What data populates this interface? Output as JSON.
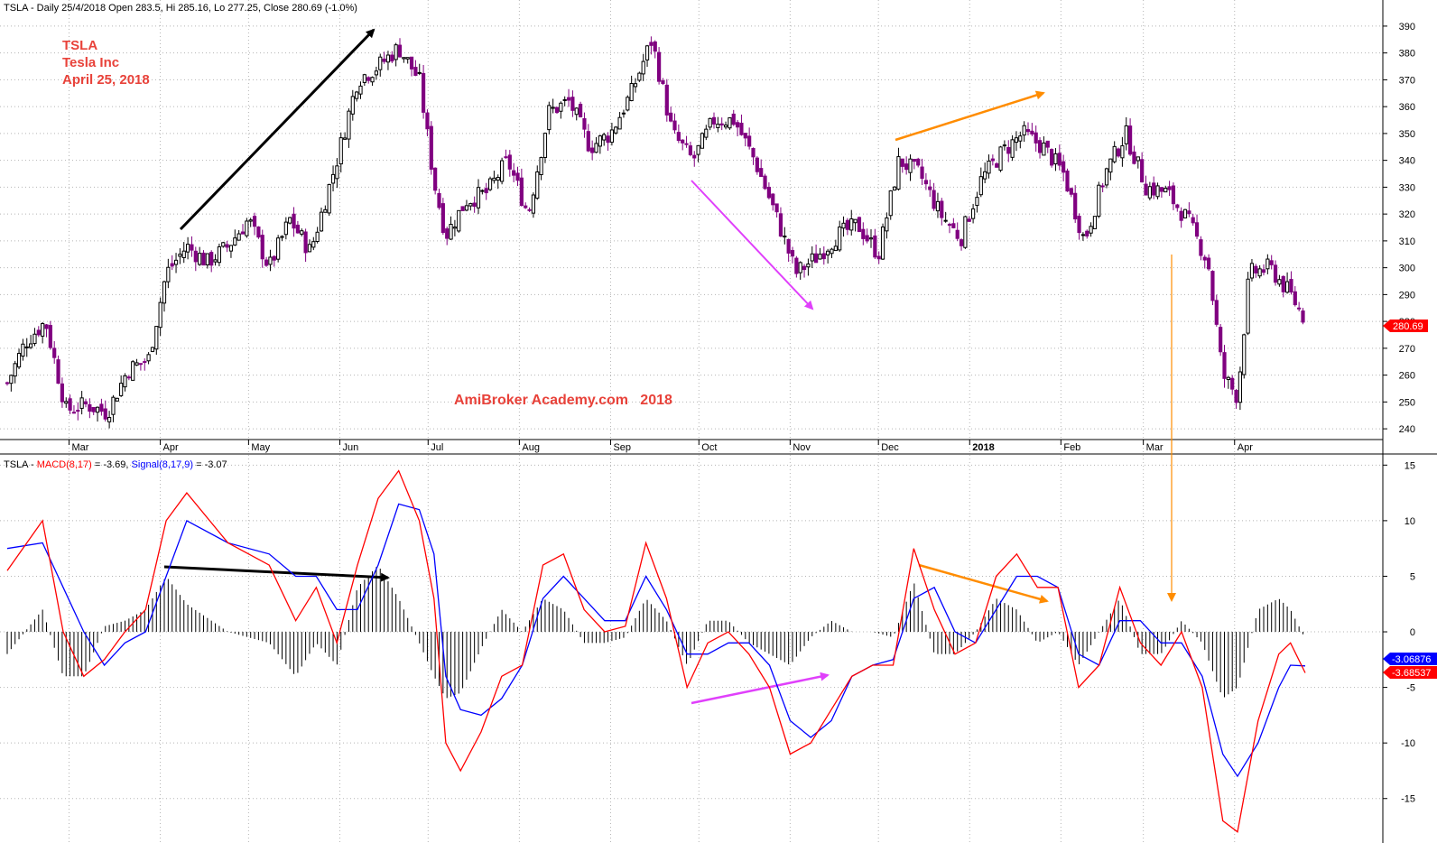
{
  "header": {
    "price_line": "TSLA - Daily 25/4/2018 Open 283.5, Hi 285.16, Lo 277.25, Close 280.69 (-1.0%)",
    "macd_prefix": "TSLA - ",
    "macd_name": "MACD(8,17)",
    "macd_value": " = -3.69, ",
    "signal_name": "Signal(8,17,9)",
    "signal_value": " = -3.07"
  },
  "annotation": {
    "title_line1": "TSLA",
    "title_line2": "Tesla Inc",
    "title_line3": "April 25, 2018",
    "watermark": "AmiBroker Academy.com   2018"
  },
  "price_tag": "280.69",
  "macd_tag": "-3.68537",
  "signal_tag": "-3.06876",
  "colors": {
    "up_candle": "#000000",
    "down_candle": "#800080",
    "macd": "#ff0000",
    "signal": "#0000ff",
    "histogram": "#000000",
    "annotation_text": "#e8423a",
    "arrow_black": "#000000",
    "arrow_purple": "#e040fb",
    "arrow_orange": "#ff8c00"
  },
  "chart_data": [
    {
      "type": "candlestick",
      "title": "TSLA - Daily 25/4/2018",
      "x_tick_labels": [
        "Mar",
        "Apr",
        "May",
        "Jun",
        "Jul",
        "Aug",
        "Sep",
        "Oct",
        "Nov",
        "Dec",
        "2018",
        "Feb",
        "Mar",
        "Apr"
      ],
      "y_tick_labels": [
        "240",
        "250",
        "260",
        "270",
        "280",
        "290",
        "300",
        "310",
        "320",
        "330",
        "340",
        "350",
        "360",
        "370",
        "380",
        "390"
      ],
      "ylim": [
        236,
        393
      ],
      "grid": true,
      "close_series": [
        [
          "2017-02-08",
          257
        ],
        [
          "2017-02-14",
          272
        ],
        [
          "2017-02-21",
          280
        ],
        [
          "2017-02-28",
          247
        ],
        [
          "2017-03-07",
          249
        ],
        [
          "2017-03-14",
          246
        ],
        [
          "2017-03-21",
          262
        ],
        [
          "2017-03-28",
          266
        ],
        [
          "2017-04-03",
          298
        ],
        [
          "2017-04-10",
          308
        ],
        [
          "2017-04-17",
          302
        ],
        [
          "2017-04-24",
          308
        ],
        [
          "2017-05-01",
          318
        ],
        [
          "2017-05-08",
          300
        ],
        [
          "2017-05-15",
          318
        ],
        [
          "2017-05-22",
          306
        ],
        [
          "2017-05-31",
          340
        ],
        [
          "2017-06-07",
          370
        ],
        [
          "2017-06-14",
          375
        ],
        [
          "2017-06-21",
          382
        ],
        [
          "2017-06-28",
          370
        ],
        [
          "2017-07-03",
          332
        ],
        [
          "2017-07-07",
          312
        ],
        [
          "2017-07-14",
          325
        ],
        [
          "2017-07-21",
          328
        ],
        [
          "2017-07-28",
          340
        ],
        [
          "2017-08-04",
          320
        ],
        [
          "2017-08-11",
          358
        ],
        [
          "2017-08-18",
          362
        ],
        [
          "2017-08-25",
          345
        ],
        [
          "2017-09-01",
          350
        ],
        [
          "2017-09-08",
          365
        ],
        [
          "2017-09-15",
          385
        ],
        [
          "2017-09-22",
          350
        ],
        [
          "2017-09-29",
          340
        ],
        [
          "2017-10-06",
          355
        ],
        [
          "2017-10-13",
          355
        ],
        [
          "2017-10-20",
          340
        ],
        [
          "2017-10-27",
          320
        ],
        [
          "2017-11-03",
          298
        ],
        [
          "2017-11-10",
          304
        ],
        [
          "2017-11-17",
          312
        ],
        [
          "2017-11-24",
          316
        ],
        [
          "2017-12-01",
          305
        ],
        [
          "2017-12-08",
          340
        ],
        [
          "2017-12-15",
          335
        ],
        [
          "2017-12-22",
          320
        ],
        [
          "2017-12-29",
          311
        ],
        [
          "2018-01-05",
          333
        ],
        [
          "2018-01-12",
          343
        ],
        [
          "2018-01-19",
          350
        ],
        [
          "2018-01-26",
          345
        ],
        [
          "2018-02-02",
          335
        ],
        [
          "2018-02-09",
          310
        ],
        [
          "2018-02-16",
          335
        ],
        [
          "2018-02-23",
          350
        ],
        [
          "2018-03-02",
          330
        ],
        [
          "2018-03-09",
          328
        ],
        [
          "2018-03-16",
          318
        ],
        [
          "2018-03-23",
          302
        ],
        [
          "2018-03-28",
          260
        ],
        [
          "2018-04-02",
          252
        ],
        [
          "2018-04-06",
          298
        ],
        [
          "2018-04-13",
          300
        ],
        [
          "2018-04-20",
          290
        ],
        [
          "2018-04-25",
          280.69
        ]
      ]
    },
    {
      "type": "line",
      "title": "TSLA - MACD(8,17) = -3.69, Signal(8,17,9) = -3.07",
      "y_tick_labels": [
        "-15",
        "-10",
        "-5",
        "0",
        "5",
        "10",
        "15"
      ],
      "ylim": [
        -19,
        16
      ],
      "series": [
        {
          "name": "MACD(8,17)",
          "values": [
            [
              "2017-02-08",
              5.5
            ],
            [
              "2017-02-20",
              10
            ],
            [
              "2017-02-27",
              0
            ],
            [
              "2017-03-06",
              -4
            ],
            [
              "2017-03-13",
              -2.5
            ],
            [
              "2017-03-20",
              0
            ],
            [
              "2017-03-27",
              2
            ],
            [
              "2017-04-03",
              10
            ],
            [
              "2017-04-10",
              12.5
            ],
            [
              "2017-04-24",
              8
            ],
            [
              "2017-05-08",
              6
            ],
            [
              "2017-05-17",
              1
            ],
            [
              "2017-05-24",
              4
            ],
            [
              "2017-05-31",
              -1
            ],
            [
              "2017-06-07",
              6
            ],
            [
              "2017-06-14",
              12
            ],
            [
              "2017-06-21",
              14.5
            ],
            [
              "2017-06-28",
              10
            ],
            [
              "2017-07-03",
              3
            ],
            [
              "2017-07-07",
              -10
            ],
            [
              "2017-07-12",
              -12.5
            ],
            [
              "2017-07-19",
              -9
            ],
            [
              "2017-07-26",
              -4
            ],
            [
              "2017-08-02",
              -3
            ],
            [
              "2017-08-09",
              6
            ],
            [
              "2017-08-16",
              7
            ],
            [
              "2017-08-23",
              2
            ],
            [
              "2017-08-30",
              0
            ],
            [
              "2017-09-06",
              0.5
            ],
            [
              "2017-09-13",
              8
            ],
            [
              "2017-09-20",
              3
            ],
            [
              "2017-09-27",
              -5
            ],
            [
              "2017-10-04",
              -1
            ],
            [
              "2017-10-11",
              0
            ],
            [
              "2017-10-18",
              -2
            ],
            [
              "2017-10-25",
              -5
            ],
            [
              "2017-11-01",
              -11
            ],
            [
              "2017-11-08",
              -10
            ],
            [
              "2017-11-15",
              -7
            ],
            [
              "2017-11-22",
              -4
            ],
            [
              "2017-11-29",
              -3
            ],
            [
              "2017-12-06",
              -3
            ],
            [
              "2017-12-13",
              7.5
            ],
            [
              "2017-12-20",
              2
            ],
            [
              "2017-12-27",
              -2
            ],
            [
              "2018-01-03",
              -1
            ],
            [
              "2018-01-10",
              5
            ],
            [
              "2018-01-17",
              7
            ],
            [
              "2018-01-24",
              4
            ],
            [
              "2018-01-31",
              4
            ],
            [
              "2018-02-07",
              -5
            ],
            [
              "2018-02-14",
              -3
            ],
            [
              "2018-02-21",
              4
            ],
            [
              "2018-02-28",
              -1
            ],
            [
              "2018-03-07",
              -3
            ],
            [
              "2018-03-14",
              0
            ],
            [
              "2018-03-21",
              -5
            ],
            [
              "2018-03-28",
              -17
            ],
            [
              "2018-04-02",
              -18
            ],
            [
              "2018-04-09",
              -8
            ],
            [
              "2018-04-16",
              -2
            ],
            [
              "2018-04-20",
              -1
            ],
            [
              "2018-04-25",
              -3.69
            ]
          ]
        },
        {
          "name": "Signal(8,17,9)",
          "values": [
            [
              "2017-02-08",
              7.5
            ],
            [
              "2017-02-20",
              8
            ],
            [
              "2017-02-27",
              4
            ],
            [
              "2017-03-06",
              0
            ],
            [
              "2017-03-13",
              -3
            ],
            [
              "2017-03-20",
              -1
            ],
            [
              "2017-03-27",
              0
            ],
            [
              "2017-04-03",
              5
            ],
            [
              "2017-04-10",
              10
            ],
            [
              "2017-04-24",
              8
            ],
            [
              "2017-05-08",
              7
            ],
            [
              "2017-05-17",
              5
            ],
            [
              "2017-05-24",
              5
            ],
            [
              "2017-05-31",
              2
            ],
            [
              "2017-06-07",
              2
            ],
            [
              "2017-06-14",
              6
            ],
            [
              "2017-06-21",
              11.5
            ],
            [
              "2017-06-28",
              11
            ],
            [
              "2017-07-03",
              7
            ],
            [
              "2017-07-07",
              -4
            ],
            [
              "2017-07-12",
              -7
            ],
            [
              "2017-07-19",
              -7.5
            ],
            [
              "2017-07-26",
              -6
            ],
            [
              "2017-08-02",
              -3
            ],
            [
              "2017-08-09",
              3
            ],
            [
              "2017-08-16",
              5
            ],
            [
              "2017-08-23",
              3
            ],
            [
              "2017-08-30",
              1
            ],
            [
              "2017-09-06",
              1
            ],
            [
              "2017-09-13",
              5
            ],
            [
              "2017-09-20",
              2
            ],
            [
              "2017-09-27",
              -2
            ],
            [
              "2017-10-04",
              -2
            ],
            [
              "2017-10-11",
              -1
            ],
            [
              "2017-10-18",
              -1
            ],
            [
              "2017-10-25",
              -3
            ],
            [
              "2017-11-01",
              -8
            ],
            [
              "2017-11-08",
              -9.5
            ],
            [
              "2017-11-15",
              -8
            ],
            [
              "2017-11-22",
              -4
            ],
            [
              "2017-11-29",
              -3
            ],
            [
              "2017-12-06",
              -2.5
            ],
            [
              "2017-12-13",
              3
            ],
            [
              "2017-12-20",
              4
            ],
            [
              "2017-12-27",
              0
            ],
            [
              "2018-01-03",
              -1
            ],
            [
              "2018-01-10",
              2
            ],
            [
              "2018-01-17",
              5
            ],
            [
              "2018-01-24",
              5
            ],
            [
              "2018-01-31",
              4
            ],
            [
              "2018-02-07",
              -2
            ],
            [
              "2018-02-14",
              -3
            ],
            [
              "2018-02-21",
              1
            ],
            [
              "2018-02-28",
              1
            ],
            [
              "2018-03-07",
              -1
            ],
            [
              "2018-03-14",
              -1
            ],
            [
              "2018-03-21",
              -4
            ],
            [
              "2018-03-28",
              -11
            ],
            [
              "2018-04-02",
              -13
            ],
            [
              "2018-04-09",
              -10
            ],
            [
              "2018-04-16",
              -5
            ],
            [
              "2018-04-20",
              -3
            ],
            [
              "2018-04-25",
              -3.07
            ]
          ]
        }
      ]
    }
  ]
}
